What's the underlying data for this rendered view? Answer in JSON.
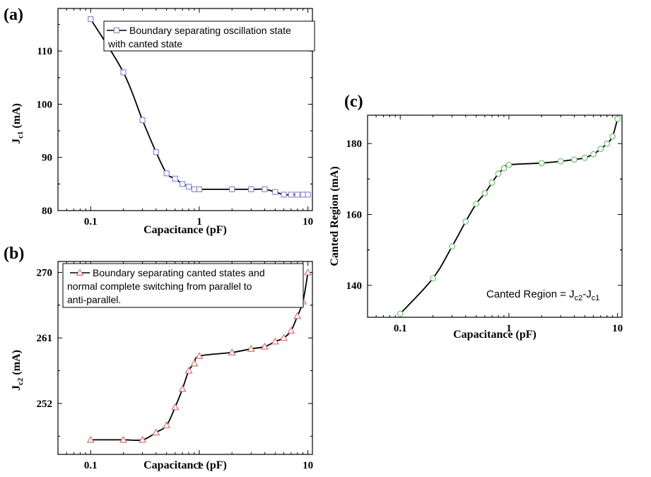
{
  "chart_data": [
    {
      "id": "a",
      "panel_label": "(a)",
      "type": "line",
      "xlabel": "Capacitance (pF)",
      "ylabel_main": "J",
      "ylabel_sub": "c1",
      "ylabel_unit": " (mA)",
      "xscale": "log",
      "xlim": [
        0.05,
        11
      ],
      "ylim": [
        80,
        118
      ],
      "xticks": [
        0.1,
        1,
        10
      ],
      "xtick_labels": [
        "0.1",
        "1",
        "10"
      ],
      "yticks": [
        80,
        90,
        100,
        110
      ],
      "ytick_labels": [
        "80",
        "90",
        "100",
        "110"
      ],
      "legend_lines": [
        "Boundary separating oscillation state",
        "with canted state"
      ],
      "legend_position": "top-right",
      "marker": "square",
      "marker_color": "#8a8ad8",
      "x": [
        0.1,
        0.2,
        0.3,
        0.4,
        0.5,
        0.6,
        0.7,
        0.8,
        0.9,
        1,
        2,
        3,
        4,
        5,
        6,
        7,
        8,
        9,
        10
      ],
      "y": [
        116,
        106,
        97,
        91,
        87,
        86,
        85,
        84.5,
        84,
        84,
        84,
        84,
        84,
        83.5,
        83,
        83,
        83,
        83,
        83
      ]
    },
    {
      "id": "b",
      "panel_label": "(b)",
      "type": "line",
      "xlabel": "Capacitance (pF)",
      "ylabel_main": "J",
      "ylabel_sub": "c2",
      "ylabel_unit": " (mA)",
      "xscale": "log",
      "xlim": [
        0.05,
        11
      ],
      "ylim": [
        245,
        271.5
      ],
      "xticks": [
        0.1,
        1,
        10
      ],
      "xtick_labels": [
        "0.1",
        "1",
        "10"
      ],
      "yticks": [
        252,
        261,
        270
      ],
      "ytick_labels": [
        "252",
        "261",
        "270"
      ],
      "legend_lines": [
        "Boundary separating canted states and",
        "normal complete switching from parallel to",
        "anti-parallel."
      ],
      "legend_position": "top-left",
      "marker": "triangle",
      "marker_color": "#e07070",
      "x": [
        0.1,
        0.2,
        0.3,
        0.4,
        0.5,
        0.6,
        0.7,
        0.8,
        0.9,
        1,
        2,
        3,
        4,
        5,
        6,
        7,
        8,
        9,
        10
      ],
      "y": [
        247,
        247,
        247,
        248,
        249,
        251.5,
        254,
        256.5,
        257.5,
        258.5,
        259,
        259.5,
        259.8,
        260.5,
        261,
        262,
        264,
        266,
        270
      ]
    },
    {
      "id": "c",
      "panel_label": "(c)",
      "type": "line",
      "xlabel": "Capacitance (pF)",
      "ylabel_main": "Canted Region (mA)",
      "xscale": "log",
      "xlim": [
        0.05,
        11
      ],
      "ylim": [
        131,
        188
      ],
      "xticks": [
        0.1,
        1,
        10
      ],
      "xtick_labels": [
        "0.1",
        "1",
        "10"
      ],
      "yticks": [
        140,
        160,
        180
      ],
      "ytick_labels": [
        "140",
        "160",
        "180"
      ],
      "annotation_main": "Canted Region = J",
      "annotation_sub1": "c2",
      "annotation_mid": "-J",
      "annotation_sub2": "c1",
      "marker": "circle",
      "marker_color": "#6cc36c",
      "x": [
        0.1,
        0.2,
        0.3,
        0.4,
        0.5,
        0.6,
        0.7,
        0.8,
        0.9,
        1,
        2,
        3,
        4,
        5,
        6,
        7,
        8,
        9,
        10
      ],
      "y": [
        132,
        142,
        151,
        158,
        163,
        166,
        169,
        171.5,
        173,
        174,
        174.5,
        175,
        175.5,
        176,
        177,
        178.5,
        180,
        182,
        187
      ]
    }
  ]
}
